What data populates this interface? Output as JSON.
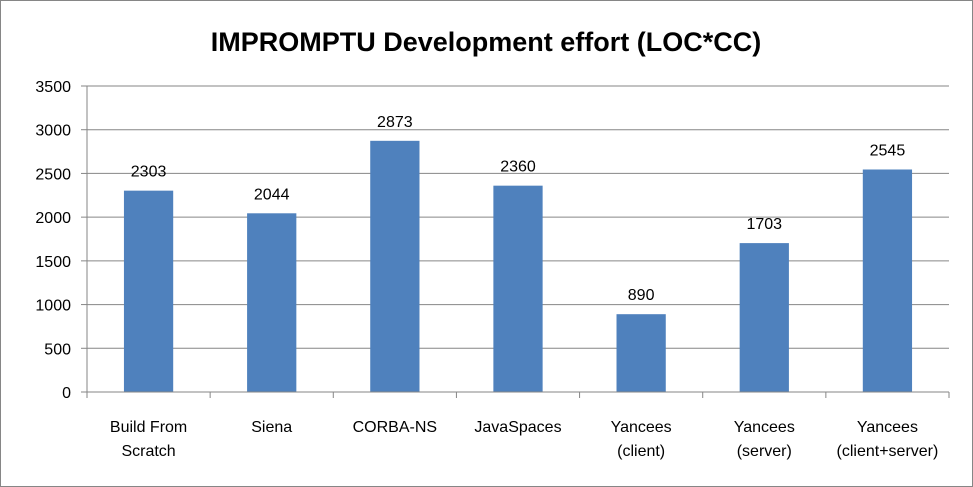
{
  "chart_data": {
    "type": "bar",
    "title": "IMPROMPTU Development effort (LOC*CC)",
    "xlabel": "",
    "ylabel": "",
    "categories": [
      [
        "Build From",
        "Scratch"
      ],
      [
        "Siena"
      ],
      [
        "CORBA-NS"
      ],
      [
        "JavaSpaces"
      ],
      [
        "Yancees",
        "(client)"
      ],
      [
        "Yancees",
        "(server)"
      ],
      [
        "Yancees",
        "(client+server)"
      ]
    ],
    "values": [
      2303,
      2044,
      2873,
      2360,
      890,
      1703,
      2545
    ],
    "ylim": [
      0,
      3500
    ],
    "yticks": [
      0,
      500,
      1000,
      1500,
      2000,
      2500,
      3000,
      3500
    ],
    "grid": true,
    "legend": "none",
    "bar_color": "#4f81bd"
  }
}
